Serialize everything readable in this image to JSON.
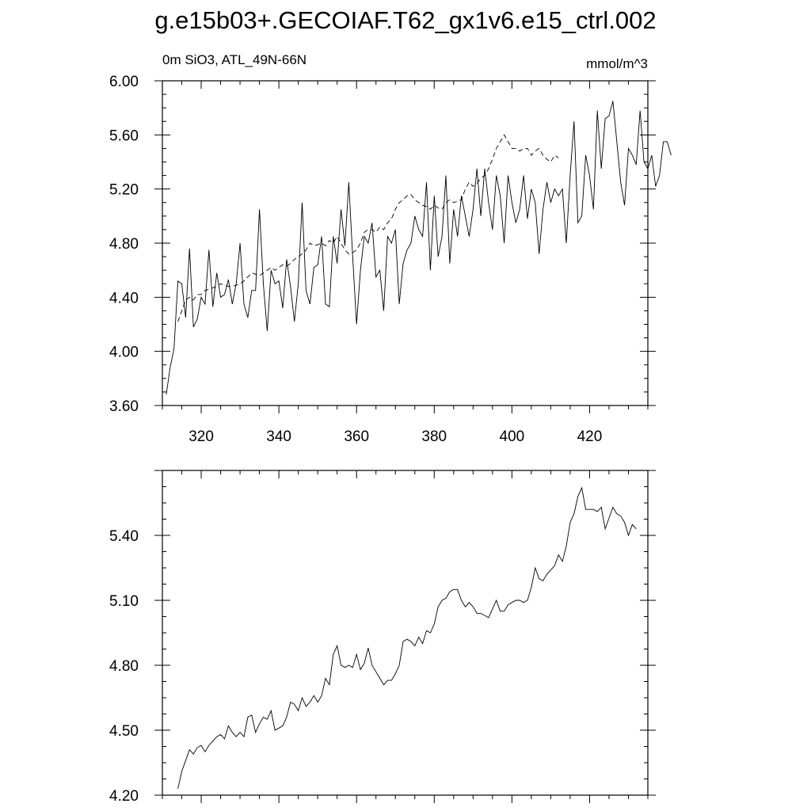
{
  "title": "g.e15b03+.GECOIAF.T62_gx1v6.e15_ctrl.002",
  "chart_data": [
    {
      "type": "line",
      "left_label": "0m SiO3, ATL_49N-66N",
      "right_label": "mmol/m^3",
      "xlim": [
        310,
        435
      ],
      "ylim": [
        3.6,
        6.0
      ],
      "xticks": [
        320,
        340,
        360,
        380,
        400,
        420
      ],
      "yticks": [
        3.6,
        4.0,
        4.4,
        4.8,
        5.2,
        5.6,
        6.0
      ],
      "ytick_labels": [
        "3.60",
        "4.00",
        "4.40",
        "4.80",
        "5.20",
        "5.60",
        "6.00"
      ],
      "x_start": 311,
      "x_step": 1,
      "series": [
        {
          "style": "solid",
          "values": [
            3.68,
            3.88,
            4.02,
            4.52,
            4.5,
            4.25,
            4.76,
            4.18,
            4.24,
            4.4,
            4.35,
            4.75,
            4.33,
            4.58,
            4.4,
            4.42,
            4.53,
            4.35,
            4.5,
            4.8,
            4.35,
            4.25,
            4.45,
            4.45,
            5.05,
            4.5,
            4.15,
            4.6,
            4.5,
            4.52,
            4.32,
            4.68,
            4.48,
            4.22,
            4.5,
            5.1,
            4.45,
            4.35,
            4.62,
            4.64,
            4.85,
            4.35,
            4.33,
            4.85,
            4.65,
            5.05,
            4.78,
            5.25,
            4.7,
            4.2,
            4.6,
            4.85,
            4.8,
            4.95,
            4.55,
            4.6,
            4.3,
            4.85,
            4.8,
            4.9,
            4.35,
            4.65,
            4.75,
            4.8,
            5.0,
            4.9,
            4.85,
            5.25,
            4.6,
            5.15,
            4.7,
            4.85,
            5.3,
            4.65,
            5.05,
            4.85,
            5.15,
            5.0,
            4.85,
            5.05,
            5.35,
            5.0,
            5.35,
            5.1,
            4.9,
            5.3,
            5.15,
            4.8,
            5.3,
            5.1,
            4.95,
            5.05,
            5.3,
            4.98,
            5.2,
            5.1,
            4.72,
            5.05,
            5.25,
            5.1,
            5.2,
            5.15,
            5.2,
            4.8,
            5.3,
            5.7,
            4.95,
            5.0,
            5.45,
            5.3,
            5.05,
            5.78,
            5.35,
            5.72,
            5.74,
            5.85,
            5.55,
            5.25,
            5.08,
            5.5,
            5.45,
            5.38,
            5.78,
            5.4,
            5.35,
            5.45,
            5.22,
            5.3,
            5.55,
            5.55,
            5.45
          ]
        },
        {
          "style": "dashed",
          "x_start": 314,
          "values": [
            4.22,
            4.3,
            4.38,
            4.4,
            4.38,
            4.42,
            4.42,
            4.45,
            4.46,
            4.47,
            4.48,
            4.5,
            4.49,
            4.48,
            4.48,
            4.49,
            4.5,
            4.52,
            4.55,
            4.58,
            4.57,
            4.56,
            4.58,
            4.6,
            4.62,
            4.6,
            4.62,
            4.64,
            4.63,
            4.65,
            4.68,
            4.7,
            4.72,
            4.75,
            4.8,
            4.78,
            4.79,
            4.8,
            4.78,
            4.82,
            4.8,
            4.85,
            4.8,
            4.75,
            4.72,
            4.73,
            4.75,
            4.8,
            4.88,
            4.9,
            4.9,
            4.88,
            4.92,
            4.9,
            4.95,
            4.98,
            5.05,
            5.1,
            5.12,
            5.15,
            5.16,
            5.12,
            5.1,
            5.08,
            5.07,
            5.05,
            5.08,
            5.06,
            5.05,
            5.1,
            5.12,
            5.1,
            5.11,
            5.12,
            5.2,
            5.25,
            5.22,
            5.24,
            5.28,
            5.3,
            5.35,
            5.42,
            5.5,
            5.55,
            5.6,
            5.55,
            5.5,
            5.5,
            5.48,
            5.5,
            5.5,
            5.45,
            5.48,
            5.5,
            5.45,
            5.42,
            5.4,
            5.45,
            5.43
          ]
        }
      ]
    },
    {
      "type": "line",
      "xlim": [
        310,
        435
      ],
      "ylim": [
        4.2,
        5.7
      ],
      "xticks": [
        320,
        340,
        360,
        380,
        400,
        420
      ],
      "yticks": [
        4.2,
        4.5,
        4.8,
        5.1,
        5.4
      ],
      "ytick_labels": [
        "4.20",
        "4.50",
        "4.80",
        "5.10",
        "5.40"
      ],
      "series": [
        {
          "style": "solid",
          "x_start": 314,
          "values": [
            4.23,
            4.31,
            4.36,
            4.41,
            4.39,
            4.42,
            4.43,
            4.4,
            4.43,
            4.45,
            4.47,
            4.48,
            4.46,
            4.52,
            4.49,
            4.47,
            4.49,
            4.47,
            4.56,
            4.57,
            4.49,
            4.53,
            4.56,
            4.55,
            4.59,
            4.5,
            4.51,
            4.52,
            4.56,
            4.63,
            4.62,
            4.59,
            4.65,
            4.61,
            4.63,
            4.66,
            4.63,
            4.66,
            4.74,
            4.71,
            4.85,
            4.89,
            4.8,
            4.79,
            4.8,
            4.79,
            4.85,
            4.78,
            4.81,
            4.88,
            4.8,
            4.77,
            4.74,
            4.71,
            4.73,
            4.73,
            4.76,
            4.8,
            4.91,
            4.92,
            4.91,
            4.89,
            4.93,
            4.9,
            4.96,
            4.95,
            4.99,
            5.07,
            5.1,
            5.11,
            5.14,
            5.15,
            5.15,
            5.1,
            5.07,
            5.09,
            5.07,
            5.04,
            5.04,
            5.03,
            5.02,
            5.06,
            5.1,
            5.05,
            5.05,
            5.08,
            5.09,
            5.1,
            5.1,
            5.09,
            5.1,
            5.16,
            5.25,
            5.2,
            5.19,
            5.22,
            5.24,
            5.26,
            5.31,
            5.28,
            5.35,
            5.46,
            5.5,
            5.58,
            5.62,
            5.52,
            5.52,
            5.52,
            5.51,
            5.53,
            5.43,
            5.48,
            5.53,
            5.5,
            5.49,
            5.46,
            5.4,
            5.45,
            5.43
          ]
        }
      ]
    }
  ]
}
